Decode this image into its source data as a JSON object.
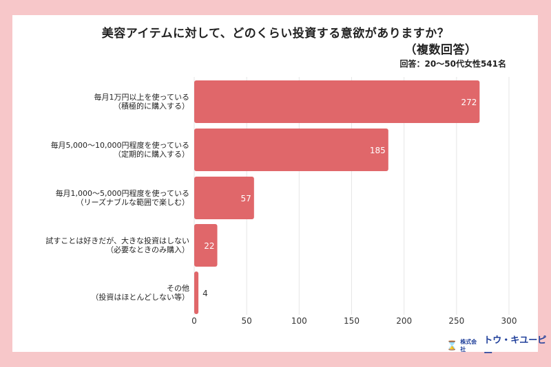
{
  "chart_data": {
    "type": "bar",
    "orientation": "horizontal",
    "title": "美容アイテムに対して、どのくらい投資する意欲がありますか？",
    "subtitle": "（複数回答）",
    "note": "回答：20〜50代女性541名",
    "categories": [
      [
        "毎月1万円以上を使っている",
        "（積極的に購入する）"
      ],
      [
        "毎月5,000〜10,000円程度を使っている",
        "（定期的に購入する）"
      ],
      [
        "毎月1,000〜5,000円程度を使っている",
        "（リーズナブルな範囲で楽しむ）"
      ],
      [
        "試すことは好きだが、大きな投資はしない",
        "（必要なときのみ購入）"
      ],
      [
        "その他",
        "（投資はほとんどしない等）"
      ]
    ],
    "values": [
      272,
      185,
      57,
      22,
      4
    ],
    "xlim": [
      0,
      300
    ],
    "xticks": [
      "0",
      "50",
      "100",
      "150",
      "200",
      "250",
      "300"
    ],
    "grid": true,
    "bar_color": "#e0676a"
  },
  "logo": {
    "mark": "⌛",
    "company_prefix": "株式会社",
    "company_name": "トウ・キユーピー"
  }
}
